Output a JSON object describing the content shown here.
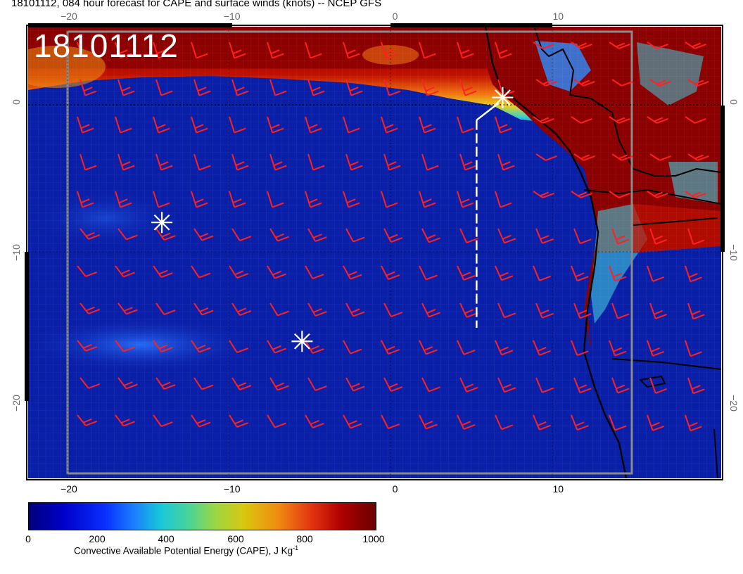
{
  "title": "18101112, 084 hour forecast for CAPE and surface winds (knots) -- NCEP GFS",
  "map": {
    "datestamp": "18101112",
    "x_ticks": [
      "−20",
      "−10",
      "0",
      "10"
    ],
    "y_ticks": [
      "0",
      "−10",
      "−20"
    ],
    "x_range": [
      -22.5,
      20
    ],
    "y_range": [
      -25,
      5
    ],
    "markers": [
      {
        "name": "asterisk",
        "lon": 6.6,
        "lat": 0.3
      },
      {
        "name": "asterisk",
        "lon": -14.3,
        "lat": -8.0
      },
      {
        "name": "asterisk",
        "lon": -5.7,
        "lat": -15.9
      }
    ],
    "dashed_track": {
      "lon": 5.0,
      "lat_from": -1.2,
      "lat_to": -15.0
    },
    "colors": {
      "ocean_low": "#0a1fa8",
      "cape_high": "#8b0000",
      "wind_barbs": "#ff2020",
      "coastline": "#000000",
      "markers": "#ffffff"
    }
  },
  "colorbar": {
    "labels": [
      "0",
      "200",
      "400",
      "600",
      "800",
      "1000"
    ],
    "title_main": "Convective Available Potential Energy (CAPE), J Kg",
    "title_sup": "-1"
  }
}
